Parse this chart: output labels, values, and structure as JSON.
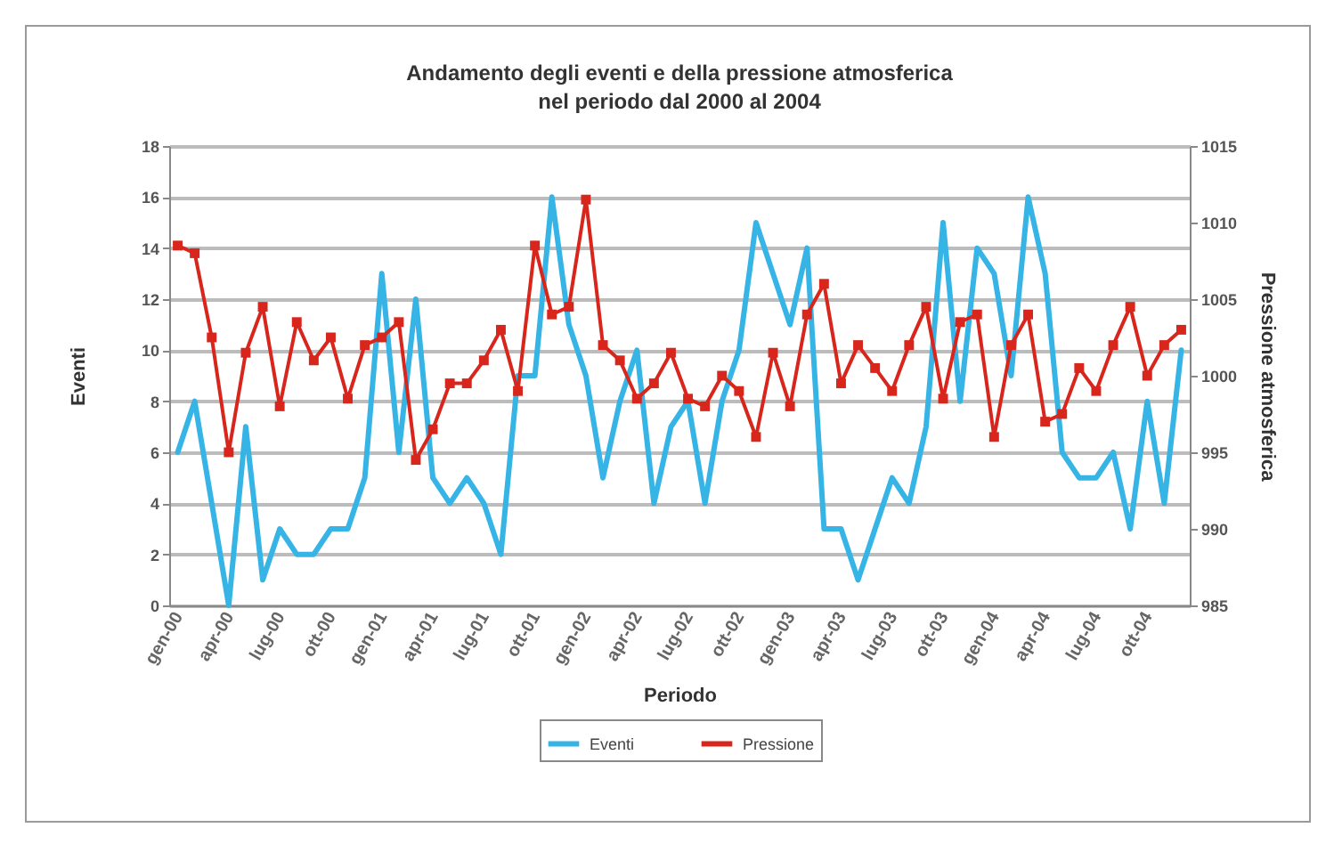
{
  "chart_data": {
    "type": "line",
    "title": "Andamento degli eventi e della pressione atmosferica\nnel periodo dal 2000 al 2004",
    "xlabel": "Periodo",
    "ylabel": "Eventi",
    "y2label": "Pressione atmosferica",
    "categories": [
      "gen-00",
      null,
      null,
      "apr-00",
      null,
      null,
      "lug-00",
      null,
      null,
      "ott-00",
      null,
      null,
      "gen-01",
      null,
      null,
      "apr-01",
      null,
      null,
      "lug-01",
      null,
      null,
      "ott-01",
      null,
      null,
      "gen-02",
      null,
      null,
      "apr-02",
      null,
      null,
      "lug-02",
      null,
      null,
      "ott-02",
      null,
      null,
      "gen-03",
      null,
      null,
      "apr-03",
      null,
      null,
      "lug-03",
      null,
      null,
      "ott-03",
      null,
      null,
      "gen-04",
      null,
      null,
      "apr-04",
      null,
      null,
      "lug-04",
      null,
      null,
      "ott-04",
      null,
      null
    ],
    "series": [
      {
        "name": "Eventi",
        "color": "#36b4e6",
        "marker": "none",
        "values": [
          6,
          8,
          4,
          0,
          7,
          1,
          3,
          2,
          2,
          3,
          3,
          5,
          13,
          6,
          12,
          5,
          4,
          5,
          4,
          2,
          9,
          9,
          16,
          11,
          9,
          5,
          8,
          10,
          4,
          7,
          8,
          4,
          8,
          10,
          15,
          13,
          11,
          14,
          3,
          3,
          1,
          3,
          5,
          4,
          7,
          15,
          8,
          14,
          13,
          9,
          16,
          13,
          6,
          5,
          5,
          6,
          3,
          8,
          4,
          10
        ]
      },
      {
        "name": "Pressione",
        "color": "#d8261c",
        "marker": "square",
        "axis": "y2",
        "values": [
          1008.5,
          1008,
          1002.5,
          995,
          1001.5,
          1004.5,
          998,
          1003.5,
          1001,
          1002.5,
          998.5,
          1002,
          1002.5,
          1003.5,
          994.5,
          996.5,
          999.5,
          999.5,
          1001,
          1003,
          999,
          1008.5,
          1004,
          1004.5,
          1011.5,
          1002,
          1001,
          998.5,
          999.5,
          1001.5,
          998.5,
          998,
          1000,
          999,
          996,
          1001.5,
          998,
          1004,
          1006,
          999.5,
          1002,
          1000.5,
          999,
          1002,
          1004.5,
          998.5,
          1003.5,
          1004,
          996,
          1002,
          1004,
          997,
          997.5,
          1000.5,
          999,
          1002,
          1004.5,
          1000,
          1002,
          1003
        ]
      }
    ],
    "ylim": [
      0,
      18
    ],
    "yticks": [
      0,
      2,
      4,
      6,
      8,
      10,
      12,
      14,
      16,
      18
    ],
    "y2lim": [
      985,
      1015
    ],
    "y2ticks": [
      985,
      990,
      995,
      1000,
      1005,
      1010,
      1015
    ],
    "grid": "y",
    "legend": "bottom"
  }
}
